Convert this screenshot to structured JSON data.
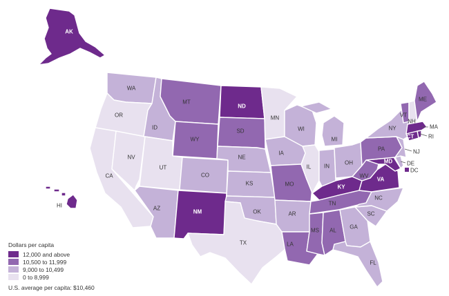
{
  "colors": {
    "c4": "#6e2a8c",
    "c3": "#9268b0",
    "c2": "#c4b2d8",
    "c1": "#e8e1ef"
  },
  "legend": {
    "title": "Dollars per capita",
    "items": [
      {
        "label": "12,000 and above",
        "bin": "c4"
      },
      {
        "label": "10,500 to 11,999",
        "bin": "c3"
      },
      {
        "label": "9,000 to 10,499",
        "bin": "c2"
      },
      {
        "label": "0 to 8,999",
        "bin": "c1"
      }
    ],
    "note": "U.S. average per capita: $10,460"
  },
  "states": {
    "AK": {
      "label": "AK",
      "bin": "c4"
    },
    "HI": {
      "label": "HI",
      "bin": "c4"
    },
    "WA": {
      "label": "WA",
      "bin": "c2"
    },
    "OR": {
      "label": "OR",
      "bin": "c1"
    },
    "CA": {
      "label": "CA",
      "bin": "c1"
    },
    "NV": {
      "label": "NV",
      "bin": "c1"
    },
    "ID": {
      "label": "ID",
      "bin": "c2"
    },
    "MT": {
      "label": "MT",
      "bin": "c3"
    },
    "WY": {
      "label": "WY",
      "bin": "c3"
    },
    "UT": {
      "label": "UT",
      "bin": "c1"
    },
    "AZ": {
      "label": "AZ",
      "bin": "c2"
    },
    "CO": {
      "label": "CO",
      "bin": "c2"
    },
    "NM": {
      "label": "NM",
      "bin": "c4"
    },
    "ND": {
      "label": "ND",
      "bin": "c4"
    },
    "SD": {
      "label": "SD",
      "bin": "c3"
    },
    "NE": {
      "label": "NE",
      "bin": "c2"
    },
    "KS": {
      "label": "KS",
      "bin": "c2"
    },
    "OK": {
      "label": "OK",
      "bin": "c2"
    },
    "TX": {
      "label": "TX",
      "bin": "c1"
    },
    "MN": {
      "label": "MN",
      "bin": "c1"
    },
    "IA": {
      "label": "IA",
      "bin": "c2"
    },
    "MO": {
      "label": "MO",
      "bin": "c3"
    },
    "AR": {
      "label": "AR",
      "bin": "c2"
    },
    "LA": {
      "label": "LA",
      "bin": "c3"
    },
    "WI": {
      "label": "WI",
      "bin": "c2"
    },
    "IL": {
      "label": "IL",
      "bin": "c1"
    },
    "MI": {
      "label": "MI",
      "bin": "c2"
    },
    "IN": {
      "label": "IN",
      "bin": "c2"
    },
    "OH": {
      "label": "OH",
      "bin": "c2"
    },
    "KY": {
      "label": "KY",
      "bin": "c4"
    },
    "TN": {
      "label": "TN",
      "bin": "c3"
    },
    "MS": {
      "label": "MS",
      "bin": "c3"
    },
    "AL": {
      "label": "AL",
      "bin": "c3"
    },
    "GA": {
      "label": "GA",
      "bin": "c2"
    },
    "FL": {
      "label": "FL",
      "bin": "c2"
    },
    "SC": {
      "label": "SC",
      "bin": "c2"
    },
    "NC": {
      "label": "NC",
      "bin": "c2"
    },
    "VA": {
      "label": "VA",
      "bin": "c4"
    },
    "WV": {
      "label": "WV",
      "bin": "c3"
    },
    "MD": {
      "label": "MD",
      "bin": "c4"
    },
    "DE": {
      "label": "DE",
      "bin": "c2"
    },
    "DC": {
      "label": "DC",
      "bin": "c4"
    },
    "PA": {
      "label": "PA",
      "bin": "c3"
    },
    "NJ": {
      "label": "NJ",
      "bin": "c2"
    },
    "NY": {
      "label": "NY",
      "bin": "c2"
    },
    "CT": {
      "label": "CT",
      "bin": "c4"
    },
    "RI": {
      "label": "RI",
      "bin": "c4"
    },
    "MA": {
      "label": "MA",
      "bin": "c4"
    },
    "VT": {
      "label": "VT",
      "bin": "c3"
    },
    "NH": {
      "label": "NH",
      "bin": "c1"
    },
    "ME": {
      "label": "ME",
      "bin": "c3"
    }
  }
}
